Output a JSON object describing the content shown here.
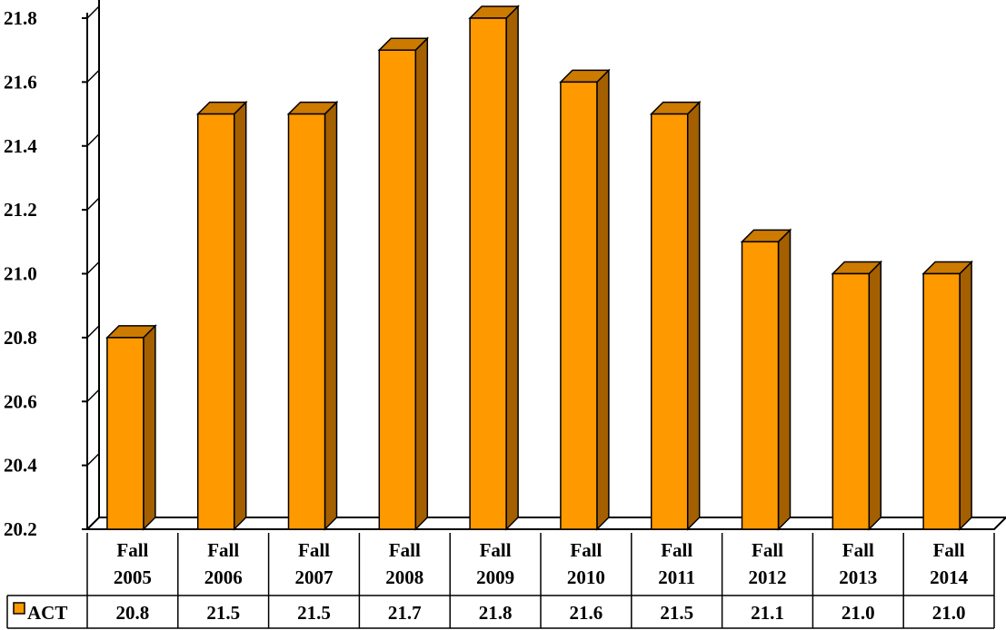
{
  "chart_data": {
    "type": "bar",
    "style": "3d-column-with-data-table",
    "categories": [
      [
        "Fall",
        "2005"
      ],
      [
        "Fall",
        "2006"
      ],
      [
        "Fall",
        "2007"
      ],
      [
        "Fall",
        "2008"
      ],
      [
        "Fall",
        "2009"
      ],
      [
        "Fall",
        "2010"
      ],
      [
        "Fall",
        "2011"
      ],
      [
        "Fall",
        "2012"
      ],
      [
        "Fall",
        "2013"
      ],
      [
        "Fall",
        "2014"
      ]
    ],
    "series": [
      {
        "name": "ACT",
        "values": [
          20.8,
          21.5,
          21.5,
          21.7,
          21.8,
          21.6,
          21.5,
          21.1,
          21.0,
          21.0
        ],
        "labels": [
          "20.8",
          "21.5",
          "21.5",
          "21.7",
          "21.8",
          "21.6",
          "21.5",
          "21.1",
          "21.0",
          "21.0"
        ],
        "color": "#FF9900",
        "side_color": "#A35F00",
        "top_color": "#CC7A00"
      }
    ],
    "yticks": [
      "20.2",
      "20.4",
      "20.6",
      "20.8",
      "21.0",
      "21.2",
      "21.4",
      "21.6",
      "21.8"
    ],
    "ylim": [
      20.2,
      21.8
    ],
    "grid": false,
    "legend": "data-table-left",
    "title": "",
    "xlabel": "",
    "ylabel": ""
  }
}
